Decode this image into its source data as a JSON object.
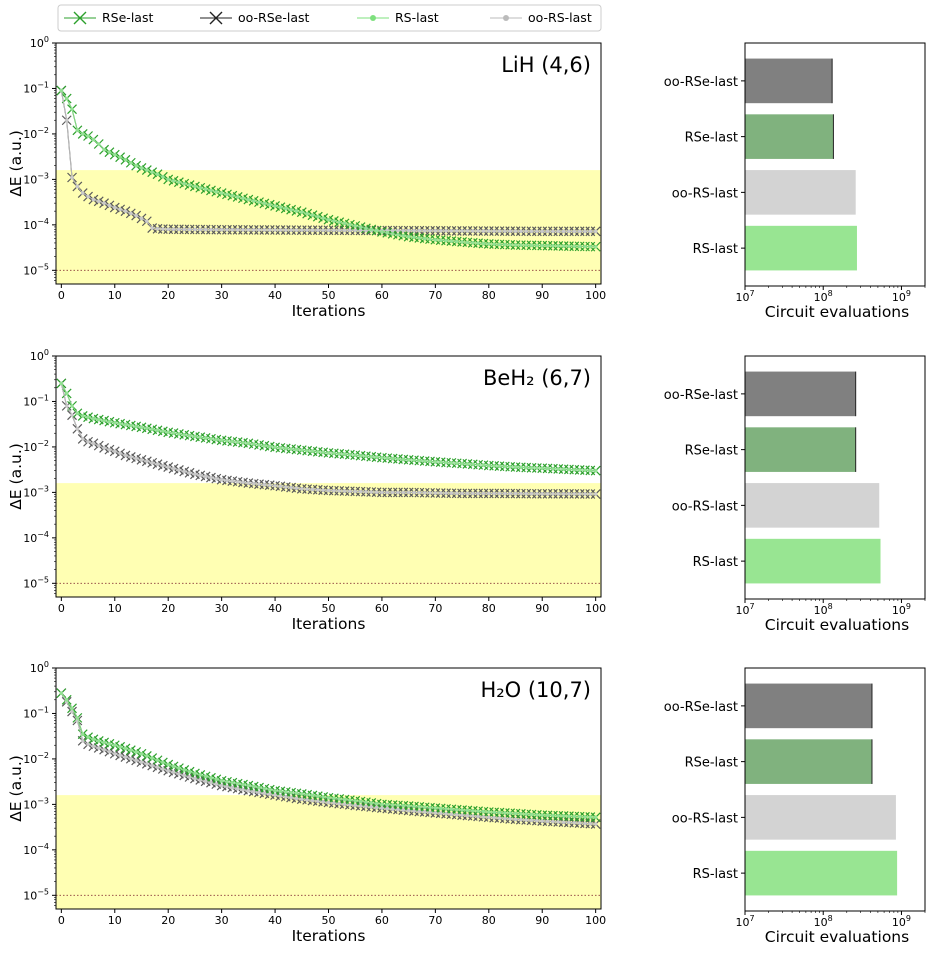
{
  "legend": {
    "entries": [
      {
        "label": "RSe-last",
        "color": "#2ca02c",
        "marker": "x"
      },
      {
        "label": "oo-RSe-last",
        "color": "#222222",
        "marker": "x"
      },
      {
        "label": "RS-last",
        "color": "#7ee07e",
        "marker": "dot"
      },
      {
        "label": "oo-RS-last",
        "color": "#bbbbbb",
        "marker": "dot"
      }
    ]
  },
  "colors": {
    "RSe-last": "#2ca02c",
    "oo-RSe-last": "#5a5a5a",
    "RS-last": "#93e093",
    "oo-RS-last": "#c8c8c8",
    "bar_RSe-last": "#80b27e",
    "bar_oo-RSe-last": "#808080",
    "bar_RS-last": "#98e592",
    "bar_oo-RS-last": "#d3d3d3",
    "chemical_accuracy_band": "#ffffb3"
  },
  "chart_data": [
    {
      "type": "line",
      "title": "LiH (4,6)",
      "xlabel": "Iterations",
      "ylabel": "ΔE (a.u.)",
      "yscale": "log",
      "xlim": [
        -1,
        101
      ],
      "ylim": [
        5e-06,
        1
      ],
      "xticks": [
        "0",
        "10",
        "20",
        "30",
        "40",
        "50",
        "60",
        "70",
        "80",
        "90",
        "100"
      ],
      "yticks": [
        "10⁰",
        "10⁻¹",
        "10⁻²",
        "10⁻³",
        "10⁻⁴",
        "10⁻⁵"
      ],
      "shaded_band": [
        1e-07,
        0.0016
      ],
      "reference_line": 1e-05,
      "series": [
        {
          "name": "RSe-last",
          "x": [
            0,
            1,
            2,
            3,
            4,
            5,
            6,
            7,
            8,
            10,
            12,
            14,
            16,
            18,
            20,
            25,
            30,
            35,
            40,
            45,
            50,
            55,
            60,
            65,
            70,
            75,
            80,
            85,
            90,
            95,
            100
          ],
          "y": [
            0.09,
            0.06,
            0.035,
            0.012,
            0.01,
            0.009,
            0.0075,
            0.006,
            0.0045,
            0.0035,
            0.0027,
            0.002,
            0.0016,
            0.0013,
            0.001,
            0.0007,
            0.0005,
            0.00036,
            0.00026,
            0.00019,
            0.00013,
            9.5e-05,
            7e-05,
            5.5e-05,
            4.7e-05,
            4.2e-05,
            3.8e-05,
            3.6e-05,
            3.5e-05,
            3.4e-05,
            3.3e-05
          ]
        },
        {
          "name": "oo-RSe-last",
          "x": [
            0,
            1,
            2,
            3,
            4,
            5,
            6,
            8,
            10,
            12,
            14,
            16,
            17,
            18,
            20,
            30,
            40,
            50,
            60,
            70,
            80,
            90,
            100
          ],
          "y": [
            0.09,
            0.02,
            0.0011,
            0.0007,
            0.0005,
            0.00042,
            0.00036,
            0.0003,
            0.00024,
            0.0002,
            0.00016,
            0.00012,
            8.5e-05,
            8.2e-05,
            8e-05,
            7.8e-05,
            7.7e-05,
            7.6e-05,
            7.5e-05,
            7.4e-05,
            7.3e-05,
            7.2e-05,
            7.2e-05
          ]
        },
        {
          "name": "RS-last",
          "x": [
            0,
            1,
            2,
            3,
            4,
            5,
            6,
            7,
            8,
            10,
            12,
            14,
            16,
            18,
            20,
            25,
            30,
            35,
            40,
            45,
            50,
            55,
            60,
            65,
            70,
            75,
            80,
            85,
            90,
            95,
            100
          ],
          "y": [
            0.09,
            0.06,
            0.035,
            0.012,
            0.01,
            0.009,
            0.0075,
            0.006,
            0.0045,
            0.0035,
            0.0027,
            0.002,
            0.0016,
            0.0013,
            0.001,
            0.0007,
            0.0005,
            0.00036,
            0.00026,
            0.00019,
            0.00013,
            9.5e-05,
            7e-05,
            5.5e-05,
            4.7e-05,
            4.2e-05,
            3.8e-05,
            3.6e-05,
            3.5e-05,
            3.4e-05,
            3.3e-05
          ]
        },
        {
          "name": "oo-RS-last",
          "x": [
            0,
            1,
            2,
            3,
            4,
            5,
            6,
            8,
            10,
            12,
            14,
            16,
            17,
            18,
            20,
            30,
            40,
            50,
            60,
            70,
            80,
            90,
            100
          ],
          "y": [
            0.09,
            0.02,
            0.0011,
            0.0007,
            0.0005,
            0.00042,
            0.00036,
            0.0003,
            0.00024,
            0.0002,
            0.00016,
            0.00012,
            8.5e-05,
            8.2e-05,
            8e-05,
            7.8e-05,
            7.7e-05,
            7.6e-05,
            7.5e-05,
            7.4e-05,
            7.3e-05,
            7.2e-05,
            7.2e-05
          ]
        }
      ]
    },
    {
      "type": "bar",
      "orientation": "horizontal",
      "xlabel": "Circuit evaluations",
      "xscale": "log",
      "xlim": [
        10000000,
        2000000000
      ],
      "xticks": [
        "10⁷",
        "10⁸",
        "10⁹"
      ],
      "categories": [
        "oo-RSe-last",
        "RSe-last",
        "oo-RS-last",
        "RS-last"
      ],
      "values": [
        130000000,
        135000000,
        260000000,
        270000000
      ]
    },
    {
      "type": "line",
      "title": "BeH₂ (6,7)",
      "xlabel": "Iterations",
      "ylabel": "ΔE (a.u.)",
      "yscale": "log",
      "xlim": [
        -1,
        101
      ],
      "ylim": [
        5e-06,
        1
      ],
      "xticks": [
        "0",
        "10",
        "20",
        "30",
        "40",
        "50",
        "60",
        "70",
        "80",
        "90",
        "100"
      ],
      "yticks": [
        "10⁰",
        "10⁻¹",
        "10⁻²",
        "10⁻³",
        "10⁻⁴",
        "10⁻⁵"
      ],
      "shaded_band": [
        1e-07,
        0.0016
      ],
      "reference_line": 1e-05,
      "series": [
        {
          "name": "RSe-last",
          "x": [
            0,
            1,
            2,
            3,
            4,
            5,
            6,
            8,
            10,
            12,
            15,
            20,
            25,
            30,
            35,
            40,
            45,
            50,
            55,
            60,
            65,
            70,
            75,
            80,
            85,
            90,
            95,
            100
          ],
          "y": [
            0.25,
            0.15,
            0.08,
            0.055,
            0.048,
            0.045,
            0.042,
            0.038,
            0.034,
            0.031,
            0.027,
            0.021,
            0.017,
            0.014,
            0.012,
            0.0098,
            0.0085,
            0.0074,
            0.0066,
            0.0058,
            0.0052,
            0.0047,
            0.0043,
            0.0039,
            0.0036,
            0.0034,
            0.0032,
            0.003
          ]
        },
        {
          "name": "oo-RSe-last",
          "x": [
            0,
            1,
            2,
            3,
            4,
            5,
            6,
            8,
            10,
            12,
            15,
            20,
            25,
            30,
            35,
            40,
            45,
            50,
            55,
            60,
            65,
            70,
            75,
            80,
            85,
            90,
            95,
            100
          ],
          "y": [
            0.25,
            0.08,
            0.05,
            0.025,
            0.015,
            0.013,
            0.012,
            0.0095,
            0.008,
            0.0065,
            0.0052,
            0.0036,
            0.0025,
            0.0019,
            0.0016,
            0.0014,
            0.0012,
            0.0011,
            0.00105,
            0.001,
            0.001,
            0.00097,
            0.00095,
            0.00095,
            0.00094,
            0.00093,
            0.00093,
            0.00092
          ]
        },
        {
          "name": "RS-last",
          "x": [
            0,
            1,
            2,
            3,
            4,
            5,
            6,
            8,
            10,
            12,
            15,
            20,
            25,
            30,
            35,
            40,
            45,
            50,
            55,
            60,
            65,
            70,
            75,
            80,
            85,
            90,
            95,
            100
          ],
          "y": [
            0.25,
            0.15,
            0.08,
            0.055,
            0.048,
            0.045,
            0.042,
            0.038,
            0.034,
            0.031,
            0.027,
            0.021,
            0.017,
            0.014,
            0.012,
            0.0098,
            0.0085,
            0.0074,
            0.0066,
            0.0058,
            0.0052,
            0.0047,
            0.0043,
            0.0039,
            0.0036,
            0.0034,
            0.0032,
            0.003
          ]
        },
        {
          "name": "oo-RS-last",
          "x": [
            0,
            1,
            2,
            3,
            4,
            5,
            6,
            8,
            10,
            12,
            15,
            20,
            25,
            30,
            35,
            40,
            45,
            50,
            55,
            60,
            65,
            70,
            75,
            80,
            85,
            90,
            95,
            100
          ],
          "y": [
            0.25,
            0.08,
            0.05,
            0.025,
            0.015,
            0.013,
            0.012,
            0.0095,
            0.008,
            0.0065,
            0.0052,
            0.0036,
            0.0025,
            0.0019,
            0.0016,
            0.0014,
            0.0012,
            0.0011,
            0.00105,
            0.001,
            0.001,
            0.00097,
            0.00095,
            0.00095,
            0.00094,
            0.00093,
            0.00093,
            0.00092
          ]
        }
      ]
    },
    {
      "type": "bar",
      "orientation": "horizontal",
      "xlabel": "Circuit evaluations",
      "xscale": "log",
      "xlim": [
        10000000,
        2000000000
      ],
      "xticks": [
        "10⁷",
        "10⁸",
        "10⁹"
      ],
      "categories": [
        "oo-RSe-last",
        "RSe-last",
        "oo-RS-last",
        "RS-last"
      ],
      "values": [
        260000000,
        260000000,
        520000000,
        540000000
      ]
    },
    {
      "type": "line",
      "title": "H₂O (10,7)",
      "xlabel": "Iterations",
      "ylabel": "ΔE (a.u.)",
      "yscale": "log",
      "xlim": [
        -1,
        101
      ],
      "ylim": [
        5e-06,
        1
      ],
      "xticks": [
        "0",
        "10",
        "20",
        "30",
        "40",
        "50",
        "60",
        "70",
        "80",
        "90",
        "100"
      ],
      "yticks": [
        "10⁰",
        "10⁻¹",
        "10⁻²",
        "10⁻³",
        "10⁻⁴",
        "10⁻⁵"
      ],
      "shaded_band": [
        1e-07,
        0.0016
      ],
      "reference_line": 1e-05,
      "series": [
        {
          "name": "RSe-last",
          "x": [
            0,
            1,
            2,
            3,
            4,
            5,
            6,
            8,
            10,
            12,
            15,
            20,
            25,
            30,
            35,
            40,
            45,
            50,
            55,
            60,
            65,
            70,
            75,
            80,
            85,
            90,
            95,
            100
          ],
          "y": [
            0.28,
            0.2,
            0.13,
            0.08,
            0.035,
            0.03,
            0.027,
            0.023,
            0.02,
            0.017,
            0.013,
            0.0075,
            0.0048,
            0.0033,
            0.0026,
            0.002,
            0.0017,
            0.0014,
            0.0012,
            0.001,
            0.00092,
            0.00083,
            0.00075,
            0.00068,
            0.00063,
            0.00058,
            0.00055,
            0.00052
          ]
        },
        {
          "name": "oo-RSe-last",
          "x": [
            0,
            1,
            2,
            3,
            4,
            5,
            6,
            8,
            10,
            12,
            15,
            20,
            25,
            30,
            35,
            40,
            45,
            50,
            55,
            60,
            65,
            70,
            75,
            80,
            85,
            90,
            95,
            100
          ],
          "y": [
            0.28,
            0.18,
            0.11,
            0.07,
            0.025,
            0.021,
            0.019,
            0.016,
            0.013,
            0.011,
            0.0085,
            0.0055,
            0.0037,
            0.0026,
            0.002,
            0.0016,
            0.0013,
            0.0011,
            0.00095,
            0.00083,
            0.00073,
            0.00065,
            0.00058,
            0.00052,
            0.00047,
            0.00043,
            0.0004,
            0.00037
          ]
        },
        {
          "name": "RS-last",
          "x": [
            0,
            1,
            2,
            3,
            4,
            5,
            6,
            8,
            10,
            12,
            15,
            20,
            25,
            30,
            35,
            40,
            45,
            50,
            55,
            60,
            65,
            70,
            75,
            80,
            85,
            90,
            95,
            100
          ],
          "y": [
            0.28,
            0.2,
            0.13,
            0.08,
            0.035,
            0.03,
            0.027,
            0.023,
            0.02,
            0.017,
            0.013,
            0.0075,
            0.0048,
            0.0033,
            0.0026,
            0.002,
            0.0017,
            0.0014,
            0.0012,
            0.001,
            0.00092,
            0.00083,
            0.00075,
            0.00068,
            0.00063,
            0.00058,
            0.00055,
            0.00052
          ]
        },
        {
          "name": "oo-RS-last",
          "x": [
            0,
            1,
            2,
            3,
            4,
            5,
            6,
            8,
            10,
            12,
            15,
            20,
            25,
            30,
            35,
            40,
            45,
            50,
            55,
            60,
            65,
            70,
            75,
            80,
            85,
            90,
            95,
            100
          ],
          "y": [
            0.28,
            0.18,
            0.11,
            0.07,
            0.025,
            0.021,
            0.019,
            0.016,
            0.013,
            0.011,
            0.0085,
            0.0055,
            0.0037,
            0.0026,
            0.002,
            0.0016,
            0.0013,
            0.0011,
            0.00095,
            0.00083,
            0.00073,
            0.00065,
            0.00058,
            0.00052,
            0.00047,
            0.00043,
            0.0004,
            0.00037
          ]
        }
      ]
    },
    {
      "type": "bar",
      "orientation": "horizontal",
      "xlabel": "Circuit evaluations",
      "xscale": "log",
      "xlim": [
        10000000,
        2000000000
      ],
      "xticks": [
        "10⁷",
        "10⁸",
        "10⁹"
      ],
      "categories": [
        "oo-RSe-last",
        "RSe-last",
        "oo-RS-last",
        "RS-last"
      ],
      "values": [
        420000000,
        420000000,
        850000000,
        880000000
      ]
    }
  ]
}
